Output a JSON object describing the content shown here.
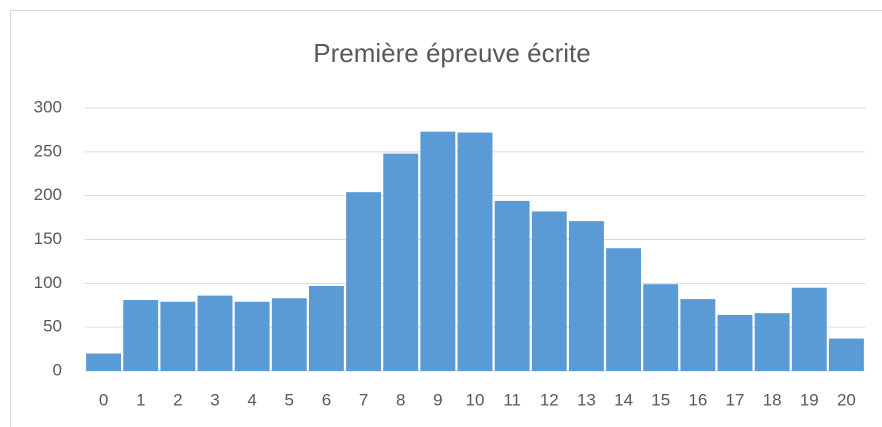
{
  "chart_data": {
    "type": "bar",
    "title": "Première épreuve écrite",
    "categories": [
      "0",
      "1",
      "2",
      "3",
      "4",
      "5",
      "6",
      "7",
      "8",
      "9",
      "10",
      "11",
      "12",
      "13",
      "14",
      "15",
      "16",
      "17",
      "18",
      "19",
      "20"
    ],
    "values": [
      20,
      81,
      79,
      86,
      79,
      83,
      97,
      204,
      248,
      273,
      272,
      194,
      182,
      171,
      140,
      99,
      82,
      64,
      66,
      95,
      37
    ],
    "color": "#5b9bd5",
    "ylim": [
      0,
      300
    ],
    "yticks": [
      0,
      50,
      100,
      150,
      200,
      250,
      300
    ],
    "grid": true
  }
}
